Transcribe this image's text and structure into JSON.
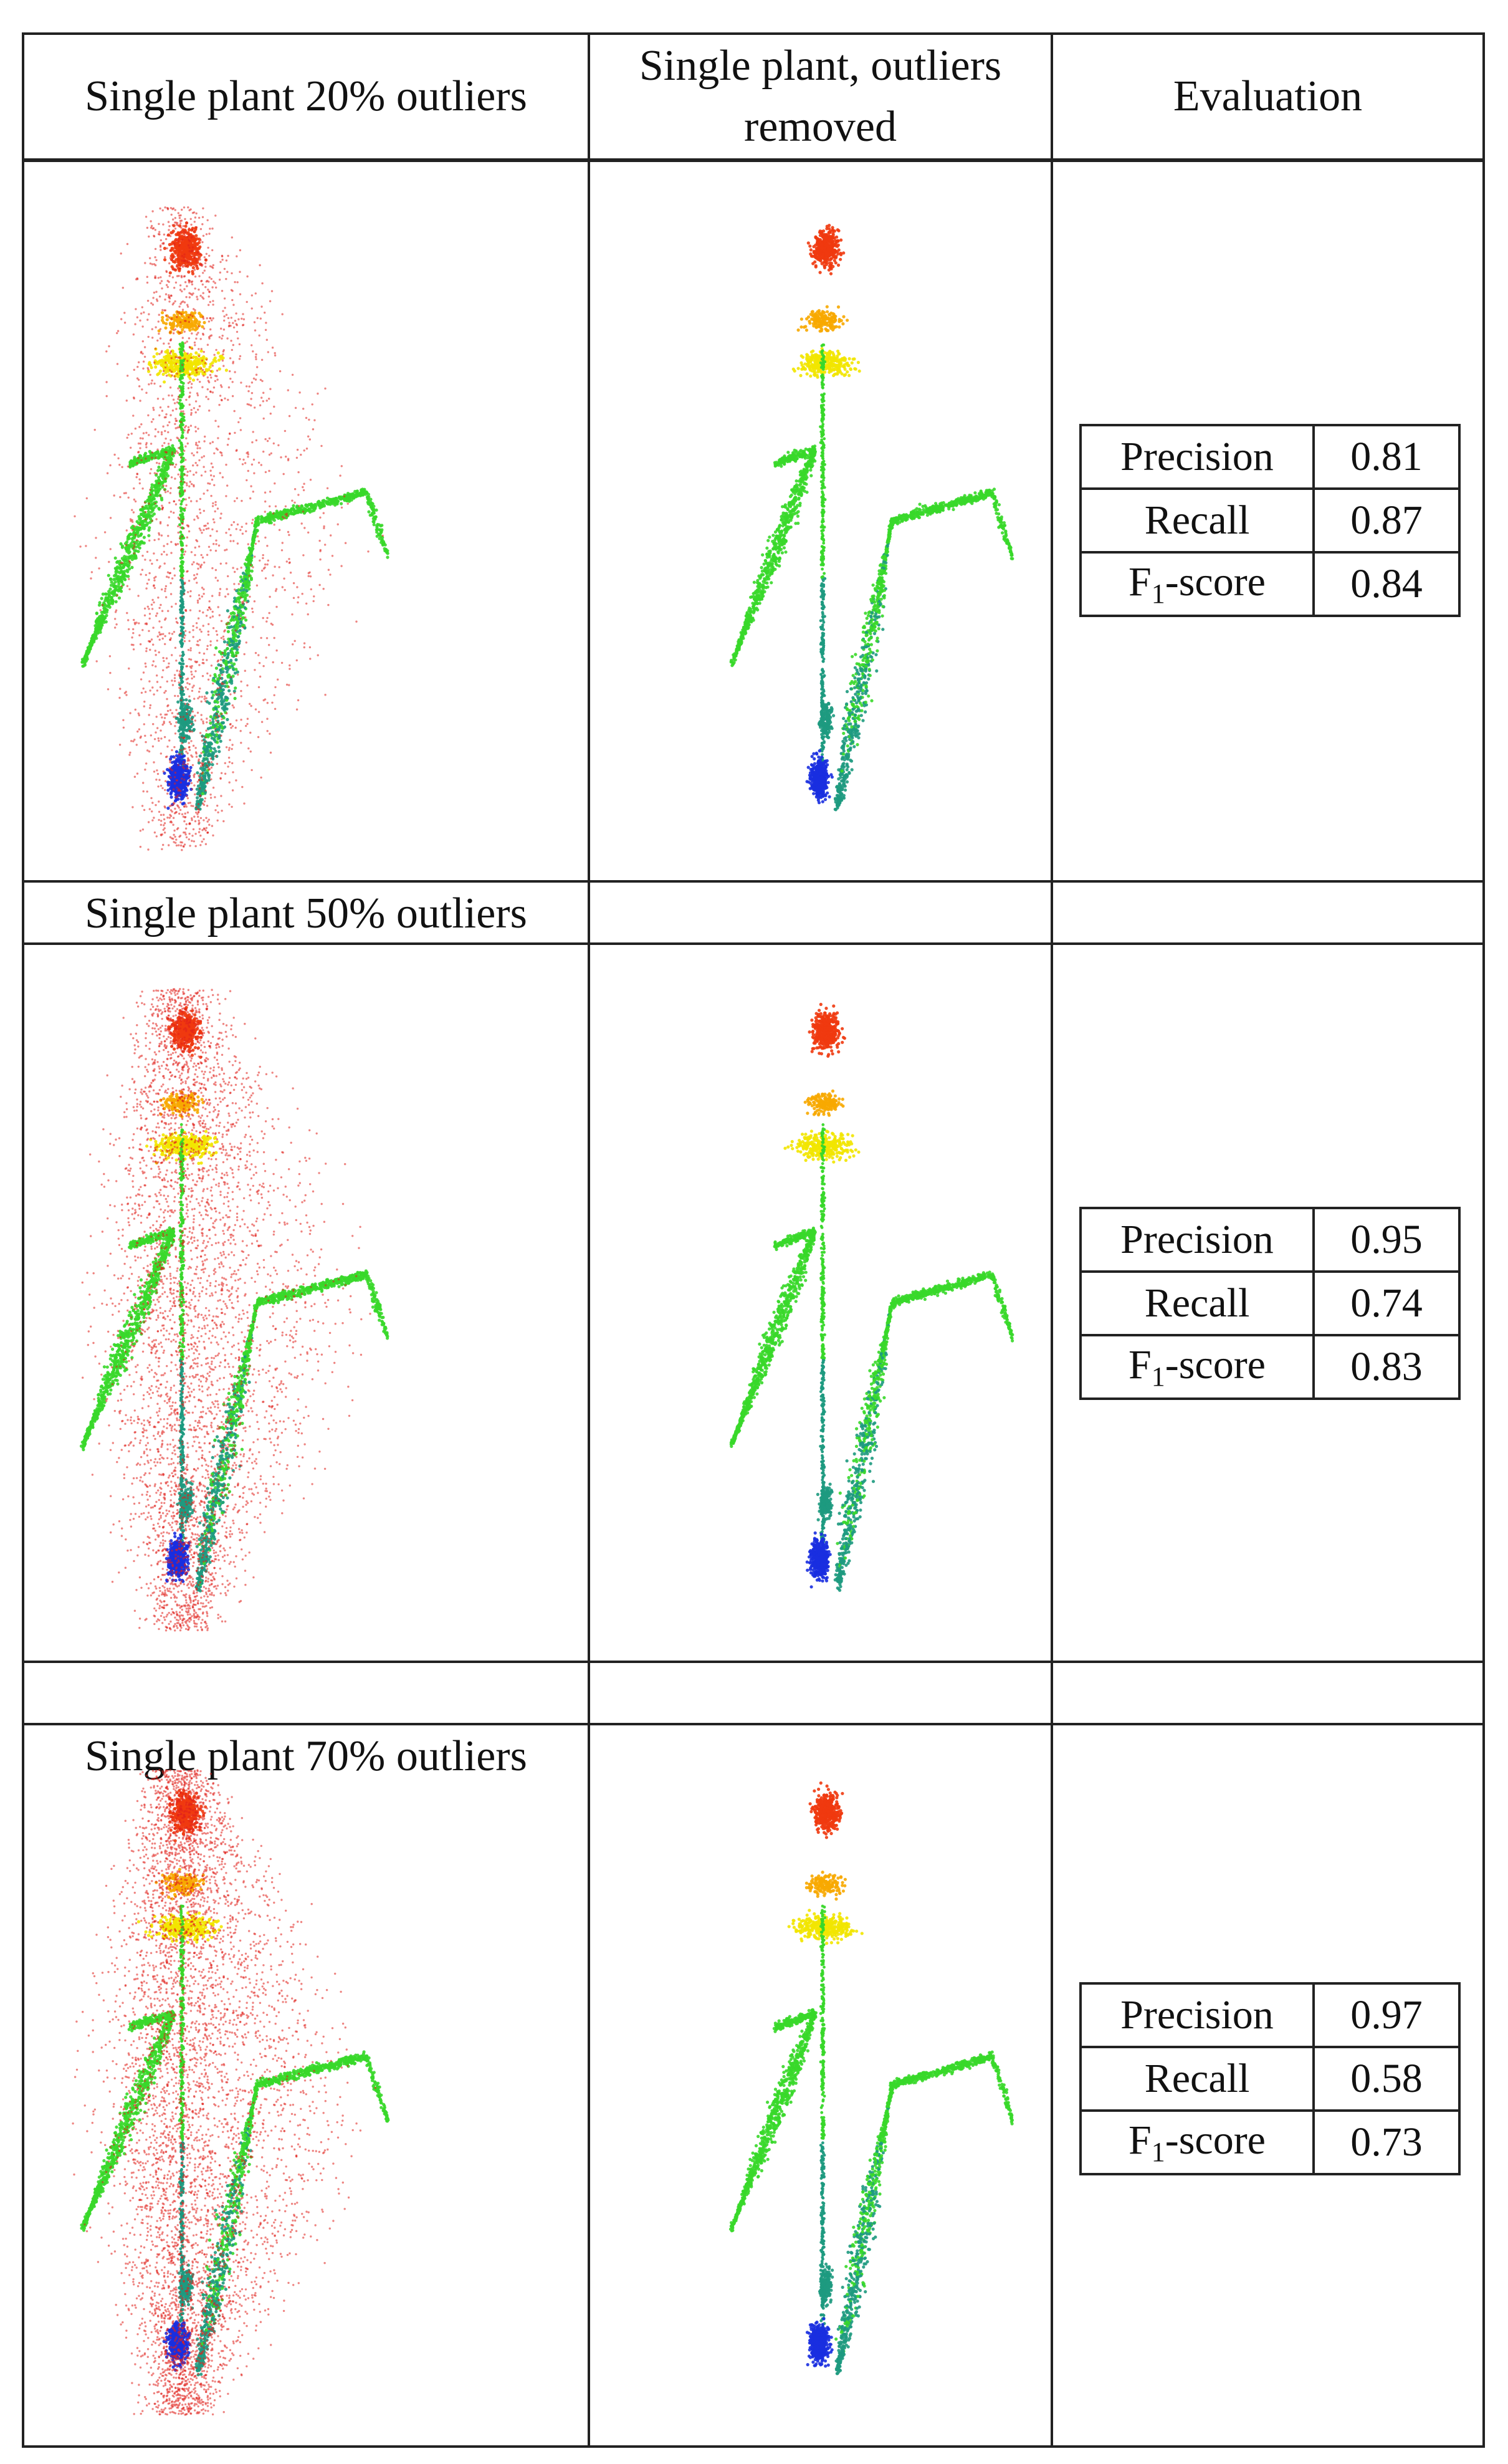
{
  "headers": {
    "col1": "Single plant 20% outliers",
    "col2": "Single plant, outliers removed",
    "col3": "Evaluation"
  },
  "rows": [
    {
      "label": "Single plant 20% outliers",
      "metrics": [
        {
          "name": "Precision",
          "value": "0.81"
        },
        {
          "name": "Recall",
          "value": "0.87"
        },
        {
          "name": "F1-score",
          "value": "0.84"
        }
      ],
      "outlier_fraction": 0.2
    },
    {
      "label": "Single plant 50% outliers",
      "metrics": [
        {
          "name": "Precision",
          "value": "0.95"
        },
        {
          "name": "Recall",
          "value": "0.74"
        },
        {
          "name": "F1-score",
          "value": "0.83"
        }
      ],
      "outlier_fraction": 0.5
    },
    {
      "label": "Single plant 70% outliers",
      "metrics": [
        {
          "name": "Precision",
          "value": "0.97"
        },
        {
          "name": "Recall",
          "value": "0.58"
        },
        {
          "name": "F1-score",
          "value": "0.73"
        }
      ],
      "outlier_fraction": 0.7
    }
  ],
  "f1_label": {
    "prefix": "F",
    "subscript": "1",
    "suffix": "-score"
  },
  "colors": {
    "outlier": "#e0201c",
    "top": "#f03a10",
    "upper": "#f7a800",
    "mid": "#f2e600",
    "leaf": "#38d82a",
    "lower": "#1e9a80",
    "base": "#1a2fe0"
  }
}
